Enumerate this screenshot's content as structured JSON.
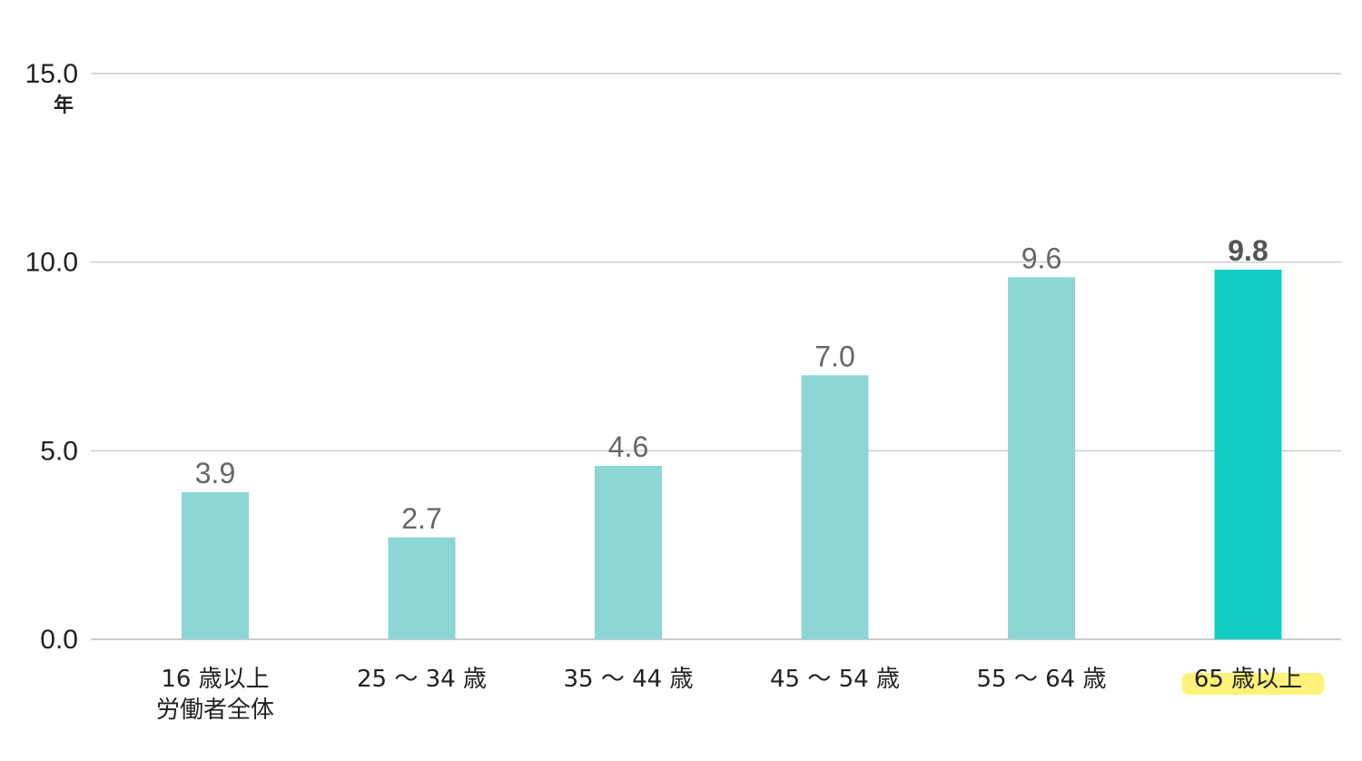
{
  "chart_data": {
    "type": "bar",
    "categories": [
      [
        "16 歳以上",
        "労働者全体"
      ],
      [
        "25 ～ 34 歳"
      ],
      [
        "35 ～ 44 歳"
      ],
      [
        "45 ～ 54 歳"
      ],
      [
        "55 ～ 64 歳"
      ],
      [
        "65 歳以上"
      ]
    ],
    "values": [
      3.9,
      2.7,
      4.6,
      7.0,
      9.6,
      9.8
    ],
    "value_labels": [
      "3.9",
      "2.7",
      "4.6",
      "7.0",
      "9.6",
      "9.8"
    ],
    "y_unit": "年",
    "ylim": [
      0,
      15
    ],
    "yticks": [
      0,
      5,
      10,
      15
    ],
    "ytick_labels": [
      "0.0",
      "5.0",
      "10.0",
      "15.0"
    ],
    "grid": true,
    "highlight_index": 5,
    "colors": {
      "bar": "#8CD6D6",
      "bar_highlight": "#14CCC6",
      "grid": "#cccccc",
      "axis": "#bbbbbb",
      "label_highlight": "#FFF27A"
    }
  }
}
